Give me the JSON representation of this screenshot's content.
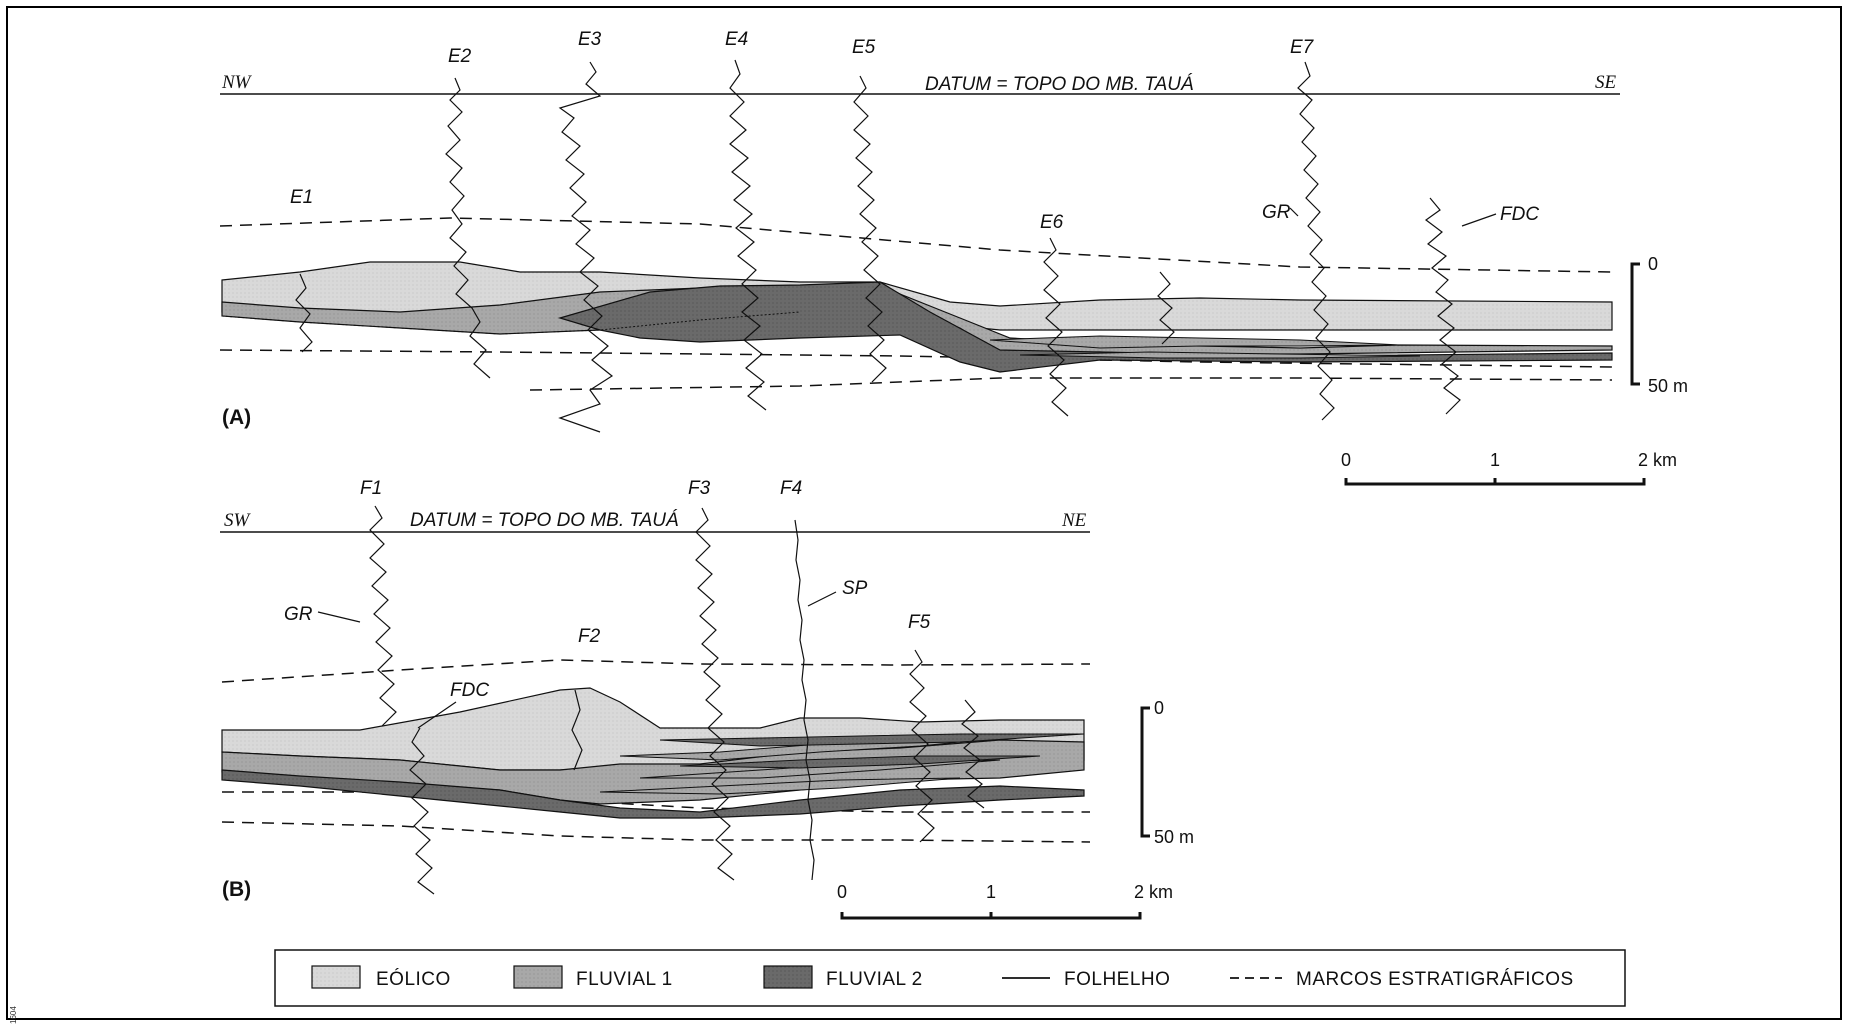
{
  "panel_a": {
    "tag": "(A)",
    "left_dir": "NW",
    "right_dir": "SE",
    "datum": "DATUM = TOPO DO MB. TAUÁ",
    "wells": [
      "E1",
      "E2",
      "E3",
      "E4",
      "E5",
      "E6",
      "E7"
    ],
    "log_labels": {
      "gr": "GR",
      "fdc": "FDC"
    },
    "vscale": {
      "top": "0",
      "bottom": "50 m"
    },
    "hscale": {
      "t0": "0",
      "t1": "1",
      "t2": "2 km"
    }
  },
  "panel_b": {
    "tag": "(B)",
    "left_dir": "SW",
    "right_dir": "NE",
    "datum": "DATUM = TOPO DO MB. TAUÁ",
    "wells": [
      "F1",
      "F2",
      "F3",
      "F4",
      "F5"
    ],
    "log_labels": {
      "gr": "GR",
      "fdc": "FDC",
      "sp": "SP"
    },
    "vscale": {
      "top": "0",
      "bottom": "50 m"
    },
    "hscale": {
      "t0": "0",
      "t1": "1",
      "t2": "2 km"
    }
  },
  "legend": {
    "eolico": "EÓLICO",
    "fluvial1": "FLUVIAL  1",
    "fluvial2": "FLUVIAL  2",
    "folhelho": "FOLHELHO",
    "marcos": "MARCOS ESTRATIGRÁFICOS"
  },
  "colors": {
    "eolico": "#d9d9d9",
    "fluvial1": "#a8a8a8",
    "fluvial2": "#6a6a6a",
    "ink": "#111111"
  },
  "side_code": "1604"
}
